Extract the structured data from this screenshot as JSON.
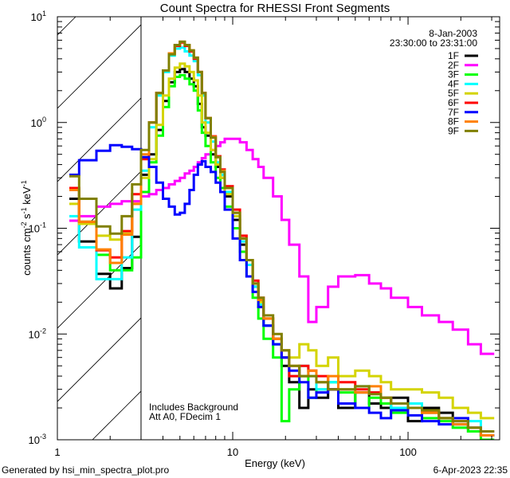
{
  "chart_data": {
    "type": "line",
    "step": true,
    "title": "Count Spectra for RHESSI Front Segments",
    "xlabel": "Energy (keV)",
    "ylabel": "counts cm^-2 s^-1 keV^-1",
    "ylabel_parts": [
      "counts cm",
      "-2",
      " s",
      "-1",
      " keV",
      "-1"
    ],
    "xscale": "log",
    "yscale": "log",
    "xlim": [
      1,
      333
    ],
    "ylim": [
      0.001,
      10
    ],
    "xticks": [
      {
        "value": 1,
        "label": "1"
      },
      {
        "value": 10,
        "label": "10"
      },
      {
        "value": 100,
        "label": "100"
      }
    ],
    "yticks": [
      {
        "value": 10,
        "base": "10",
        "exp": "1"
      },
      {
        "value": 1,
        "base": "10",
        "exp": "0"
      },
      {
        "value": 0.1,
        "base": "10",
        "exp": "-1"
      },
      {
        "value": 0.01,
        "base": "10",
        "exp": "-2"
      },
      {
        "value": 0.001,
        "base": "10",
        "exp": "-3"
      }
    ],
    "shaded_region": {
      "x_from": 1,
      "x_to": 3,
      "pattern": "diagonal-hatch"
    },
    "legend": {
      "placement": "top-right",
      "date": "8-Jan-2003",
      "time_range": "23:30:00 to 23:31:00"
    },
    "annotations": [
      "Includes Background",
      "Att A0, FDecim 1"
    ],
    "bin_edges_keV": [
      1.17,
      1.33,
      1.67,
      2,
      2.33,
      2.67,
      3,
      3.33,
      3.67,
      4,
      4.33,
      4.67,
      5,
      5.33,
      5.67,
      6,
      6.33,
      6.67,
      7,
      7.5,
      8,
      8.5,
      9,
      10,
      11,
      12,
      13,
      14,
      15,
      17,
      19,
      21,
      24,
      27,
      30,
      35,
      40,
      50,
      60,
      70,
      80,
      100,
      120,
      150,
      180,
      220,
      260,
      310
    ],
    "series": [
      {
        "name": "1F",
        "color": "#000000",
        "values": [
          0.19,
          0.075,
          0.037,
          0.027,
          0.042,
          0.083,
          0.32,
          0.5,
          0.85,
          1.6,
          2.4,
          3.0,
          3.2,
          3.0,
          2.6,
          2.2,
          1.5,
          0.9,
          0.75,
          0.5,
          0.38,
          0.3,
          0.2,
          0.12,
          0.07,
          0.045,
          0.028,
          0.018,
          0.012,
          0.008,
          0.005,
          0.0035,
          0.002,
          0.003,
          0.0025,
          0.003,
          0.002,
          0.0028,
          0.0022,
          0.002,
          0.0025,
          0.0015,
          0.002,
          0.0018,
          0.0014,
          0.0012,
          0.0011
        ]
      },
      {
        "name": "2F",
        "color": "#ff00ff",
        "values": [
          0.118,
          0.13,
          0.16,
          0.17,
          0.18,
          0.18,
          0.2,
          0.21,
          0.23,
          0.24,
          0.26,
          0.28,
          0.3,
          0.33,
          0.35,
          0.38,
          0.42,
          0.46,
          0.5,
          0.55,
          0.6,
          0.65,
          0.7,
          0.7,
          0.65,
          0.55,
          0.45,
          0.38,
          0.3,
          0.2,
          0.12,
          0.07,
          0.035,
          0.013,
          0.018,
          0.028,
          0.035,
          0.036,
          0.03,
          0.027,
          0.022,
          0.018,
          0.015,
          0.013,
          0.011,
          0.008,
          0.0065
        ]
      },
      {
        "name": "3F",
        "color": "#00ff00",
        "values": [
          0.23,
          0.115,
          0.056,
          0.04,
          0.04,
          0.053,
          0.22,
          0.42,
          0.75,
          1.4,
          2.2,
          2.7,
          2.8,
          2.6,
          2.3,
          2.0,
          1.3,
          0.8,
          0.6,
          0.42,
          0.3,
          0.24,
          0.16,
          0.1,
          0.06,
          0.035,
          0.022,
          0.014,
          0.009,
          0.006,
          0.0015,
          0.003,
          0.004,
          0.0025,
          0.003,
          0.0035,
          0.0028,
          0.002,
          0.0025,
          0.0022,
          0.0018,
          0.002,
          0.0016,
          0.0015,
          0.0013,
          0.0012,
          0.001
        ]
      },
      {
        "name": "4F",
        "color": "#00ffff",
        "values": [
          0.13,
          0.066,
          0.033,
          0.033,
          0.053,
          0.15,
          0.35,
          0.9,
          1.8,
          3.0,
          4.3,
          5.0,
          5.1,
          4.7,
          4.3,
          3.8,
          2.8,
          1.8,
          1.0,
          0.66,
          0.42,
          0.32,
          0.22,
          0.13,
          0.075,
          0.045,
          0.028,
          0.019,
          0.012,
          0.008,
          0.006,
          0.004,
          0.005,
          0.004,
          0.003,
          0.0035,
          0.003,
          0.0032,
          0.0028,
          0.0025,
          0.002,
          0.0022,
          0.0018,
          0.0016,
          0.0014,
          0.0015,
          0.0012
        ]
      },
      {
        "name": "5F",
        "color": "#d4d400",
        "values": [
          0.17,
          0.11,
          0.085,
          0.078,
          0.089,
          0.17,
          0.3,
          0.45,
          0.95,
          1.8,
          2.6,
          3.3,
          3.6,
          3.4,
          3.0,
          2.5,
          1.8,
          1.0,
          0.8,
          0.55,
          0.4,
          0.3,
          0.21,
          0.13,
          0.08,
          0.05,
          0.03,
          0.02,
          0.014,
          0.009,
          0.007,
          0.006,
          0.008,
          0.007,
          0.005,
          0.006,
          0.004,
          0.0045,
          0.004,
          0.0035,
          0.003,
          0.003,
          0.0028,
          0.0025,
          0.002,
          0.0018,
          0.0016
        ]
      },
      {
        "name": "6F",
        "color": "#ff0000",
        "values": [
          0.24,
          0.115,
          0.062,
          0.053,
          0.094,
          0.21,
          0.45,
          1.0,
          1.9,
          3.1,
          4.5,
          5.3,
          5.7,
          5.3,
          4.7,
          4.0,
          3.0,
          1.9,
          1.1,
          0.74,
          0.48,
          0.36,
          0.25,
          0.15,
          0.085,
          0.05,
          0.032,
          0.022,
          0.014,
          0.009,
          0.006,
          0.004,
          0.005,
          0.0045,
          0.004,
          0.003,
          0.0035,
          0.003,
          0.0028,
          0.0025,
          0.0022,
          0.002,
          0.0018,
          0.0016,
          0.0015,
          0.0013,
          0.0012
        ]
      },
      {
        "name": "7F",
        "color": "#0000ff",
        "values": [
          0.32,
          0.44,
          0.54,
          0.61,
          0.59,
          0.56,
          0.47,
          0.38,
          0.27,
          0.19,
          0.16,
          0.135,
          0.14,
          0.17,
          0.23,
          0.32,
          0.4,
          0.43,
          0.38,
          0.34,
          0.27,
          0.22,
          0.15,
          0.08,
          0.05,
          0.035,
          0.025,
          0.018,
          0.012,
          0.008,
          0.006,
          0.0045,
          0.0035,
          0.0025,
          0.0028,
          0.003,
          0.0022,
          0.002,
          0.0018,
          0.0016,
          0.0019,
          0.0017,
          0.0015,
          0.0014,
          0.0016,
          0.0013,
          0.0011
        ]
      },
      {
        "name": "8F",
        "color": "#ff8000",
        "values": [
          0.23,
          0.115,
          0.063,
          0.047,
          0.087,
          0.17,
          0.5,
          1.0,
          1.9,
          3.1,
          4.5,
          5.4,
          5.8,
          5.4,
          4.8,
          4.1,
          3.0,
          1.9,
          1.1,
          0.73,
          0.47,
          0.35,
          0.24,
          0.14,
          0.08,
          0.05,
          0.03,
          0.021,
          0.014,
          0.009,
          0.007,
          0.005,
          0.004,
          0.0045,
          0.0035,
          0.004,
          0.003,
          0.0028,
          0.0032,
          0.0025,
          0.0022,
          0.002,
          0.0018,
          0.0016,
          0.0014,
          0.0013,
          0.0011
        ]
      },
      {
        "name": "9F",
        "color": "#808000",
        "values": [
          0.31,
          0.19,
          0.104,
          0.089,
          0.13,
          0.26,
          0.55,
          1.0,
          1.9,
          3.1,
          4.4,
          5.4,
          5.8,
          5.4,
          4.8,
          4.1,
          3.0,
          1.9,
          1.1,
          0.72,
          0.47,
          0.34,
          0.24,
          0.14,
          0.08,
          0.05,
          0.03,
          0.022,
          0.015,
          0.01,
          0.007,
          0.005,
          0.004,
          0.004,
          0.0035,
          0.003,
          0.003,
          0.0032,
          0.0027,
          0.0025,
          0.0022,
          0.002,
          0.0019,
          0.0016,
          0.0015,
          0.0013,
          0.0012
        ]
      }
    ]
  },
  "footer": {
    "generated_by": "Generated by hsi_min_spectra_plot.pro",
    "timestamp": "6-Apr-2023 22:35"
  }
}
